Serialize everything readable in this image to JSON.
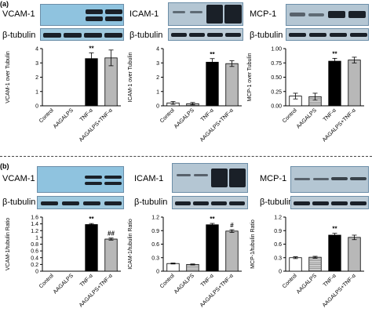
{
  "panel_labels": {
    "a": "(a)",
    "b": "(b)"
  },
  "blots": {
    "a": {
      "targets": [
        "VCAM-1",
        "ICAM-1",
        "MCP-1"
      ],
      "loading": "β-tubulin"
    },
    "b": {
      "targets": [
        "VCAM-1",
        "ICAM-1",
        "MCP-1"
      ],
      "loading": "β-tubulin"
    }
  },
  "chart_data": [
    {
      "type": "bar",
      "panel": "a",
      "ylabel": "VCAM-1 over Tubulin",
      "categories": [
        "Control",
        "AAGALPS",
        "TNF-α",
        "AAGALPS+TNF-α"
      ],
      "values": [
        0,
        0,
        3.3,
        3.35
      ],
      "errors": [
        0,
        0,
        0.4,
        0.55
      ],
      "annotations": [
        "",
        "",
        "**",
        ""
      ],
      "ylim": [
        0,
        4
      ],
      "yticks": [
        "0",
        "1",
        "2",
        "3",
        "4"
      ],
      "bar_fills": [
        "#ffffff",
        "#cfcfcf",
        "#000000",
        "#b8b8b8"
      ]
    },
    {
      "type": "bar",
      "panel": "a",
      "ylabel": "ICAM-1 over Tubulin",
      "categories": [
        "Control",
        "AAGALPS",
        "TNF-α",
        "AAGALPS+TNF-α"
      ],
      "values": [
        0.2,
        0.15,
        3.05,
        2.95
      ],
      "errors": [
        0.1,
        0.08,
        0.25,
        0.2
      ],
      "annotations": [
        "",
        "",
        "**",
        ""
      ],
      "ylim": [
        0,
        4
      ],
      "yticks": [
        "0",
        "1",
        "2",
        "3",
        "4"
      ],
      "bar_fills": [
        "#ffffff",
        "#cfcfcf",
        "#000000",
        "#b8b8b8"
      ]
    },
    {
      "type": "bar",
      "panel": "a",
      "ylabel": "MCP-1 over Tubulin",
      "categories": [
        "Control",
        "AAGALPS",
        "TNF-α",
        "AAGALPS+TNF-α"
      ],
      "values": [
        0.17,
        0.16,
        0.78,
        0.8
      ],
      "errors": [
        0.05,
        0.06,
        0.05,
        0.05
      ],
      "annotations": [
        "",
        "",
        "**",
        ""
      ],
      "ylim": [
        0,
        1
      ],
      "yticks": [
        "0.00",
        "0.25",
        "0.50",
        "0.75",
        "1.00"
      ],
      "bar_fills": [
        "#ffffff",
        "#cfcfcf",
        "#000000",
        "#b8b8b8"
      ]
    },
    {
      "type": "bar",
      "panel": "b",
      "ylabel": "VCAM-1/tubulin Ratio",
      "categories": [
        "Control",
        "AAGALPS",
        "TNF-α",
        "AAGALPS+TNF-α"
      ],
      "values": [
        0,
        0,
        1.38,
        0.95
      ],
      "errors": [
        0,
        0,
        0.03,
        0.03
      ],
      "annotations": [
        "",
        "",
        "**",
        "##"
      ],
      "ylim": [
        0,
        1.6
      ],
      "yticks": [
        "0",
        "0.2",
        "0.4",
        "0.6",
        "0.8",
        "1",
        "1.2",
        "1.4",
        "1.6"
      ],
      "bar_fills": [
        "#ffffff",
        "#cfcfcf",
        "#000000",
        "#b8b8b8"
      ]
    },
    {
      "type": "bar",
      "panel": "b",
      "ylabel": "ICAM-1/tubulin Ratio",
      "categories": [
        "Control",
        "AAGALPS",
        "TNF-α",
        "AAGALPS+TNF-α"
      ],
      "values": [
        0.17,
        0.15,
        1.03,
        0.89
      ],
      "errors": [
        0.01,
        0.01,
        0.03,
        0.03
      ],
      "annotations": [
        "",
        "",
        "**",
        "#"
      ],
      "ylim": [
        0,
        1.2
      ],
      "yticks": [
        "0",
        "0.3",
        "0.6",
        "0.9",
        "1.2"
      ],
      "bar_fills": [
        "#ffffff",
        "#cfcfcf",
        "#000000",
        "#b8b8b8"
      ]
    },
    {
      "type": "bar",
      "panel": "b",
      "ylabel": "MCP-1/tubulin Ratio",
      "categories": [
        "Control",
        "AAGALPS",
        "TNF-α",
        "AAGALPS+TNF-α"
      ],
      "values": [
        0.3,
        0.31,
        0.8,
        0.75
      ],
      "errors": [
        0.02,
        0.02,
        0.04,
        0.05
      ],
      "annotations": [
        "",
        "",
        "**",
        ""
      ],
      "ylim": [
        0,
        1.2
      ],
      "yticks": [
        "0",
        "0.3",
        "0.6",
        "0.9",
        "1.2"
      ],
      "bar_fills": [
        "#ffffff",
        "#cfcfcf",
        "#000000",
        "#b8b8b8"
      ]
    }
  ]
}
